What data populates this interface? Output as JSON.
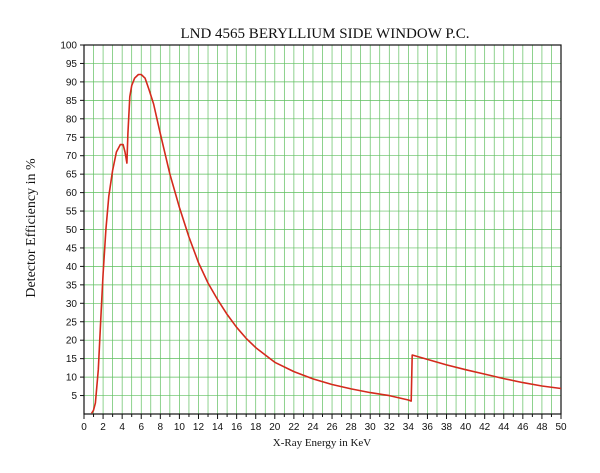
{
  "chart_data": {
    "type": "line",
    "title": "LND 4565 BERYLLIUM SIDE WINDOW P.C.",
    "xlabel": "X-Ray Energy in KeV",
    "ylabel": "Detector Efficiency in %",
    "xlim": [
      0,
      50
    ],
    "ylim": [
      0,
      100
    ],
    "x_ticks": [
      0,
      2,
      4,
      6,
      8,
      10,
      12,
      14,
      16,
      18,
      20,
      22,
      24,
      26,
      28,
      30,
      32,
      34,
      36,
      38,
      40,
      42,
      44,
      46,
      48,
      50
    ],
    "y_ticks": [
      5,
      10,
      15,
      20,
      25,
      30,
      35,
      40,
      45,
      50,
      55,
      60,
      65,
      70,
      75,
      80,
      85,
      90,
      95,
      100
    ],
    "grid": true,
    "minor_x_step": 1,
    "line_color": "#d42a1c",
    "grid_color": "#5fbf5f",
    "series": [
      {
        "points": [
          [
            0.8,
            0.2
          ],
          [
            1.0,
            1
          ],
          [
            1.2,
            3
          ],
          [
            1.5,
            12
          ],
          [
            1.8,
            28
          ],
          [
            2.0,
            38
          ],
          [
            2.3,
            50
          ],
          [
            2.6,
            59
          ],
          [
            3.0,
            66
          ],
          [
            3.4,
            71
          ],
          [
            3.8,
            73
          ],
          [
            4.1,
            73
          ],
          [
            4.3,
            71
          ],
          [
            4.5,
            68
          ],
          [
            4.6,
            76
          ],
          [
            4.8,
            86
          ],
          [
            5.0,
            89
          ],
          [
            5.3,
            91
          ],
          [
            5.7,
            92
          ],
          [
            6.0,
            92
          ],
          [
            6.4,
            91
          ],
          [
            6.8,
            88
          ],
          [
            7.3,
            84
          ],
          [
            8.0,
            76
          ],
          [
            9.0,
            65
          ],
          [
            10,
            56
          ],
          [
            11,
            48
          ],
          [
            12,
            41
          ],
          [
            13,
            35.5
          ],
          [
            14,
            31
          ],
          [
            15,
            27
          ],
          [
            16,
            23.5
          ],
          [
            17,
            20.5
          ],
          [
            18,
            18
          ],
          [
            19,
            16
          ],
          [
            20,
            14
          ],
          [
            22,
            11.5
          ],
          [
            24,
            9.5
          ],
          [
            26,
            8
          ],
          [
            28,
            6.8
          ],
          [
            30,
            5.8
          ],
          [
            32,
            5
          ],
          [
            34,
            3.8
          ],
          [
            34.3,
            3.5
          ],
          [
            34.4,
            16
          ],
          [
            36,
            14.8
          ],
          [
            38,
            13.3
          ],
          [
            40,
            12
          ],
          [
            42,
            10.8
          ],
          [
            44,
            9.6
          ],
          [
            46,
            8.5
          ],
          [
            48,
            7.6
          ],
          [
            50,
            6.9
          ]
        ]
      }
    ]
  }
}
